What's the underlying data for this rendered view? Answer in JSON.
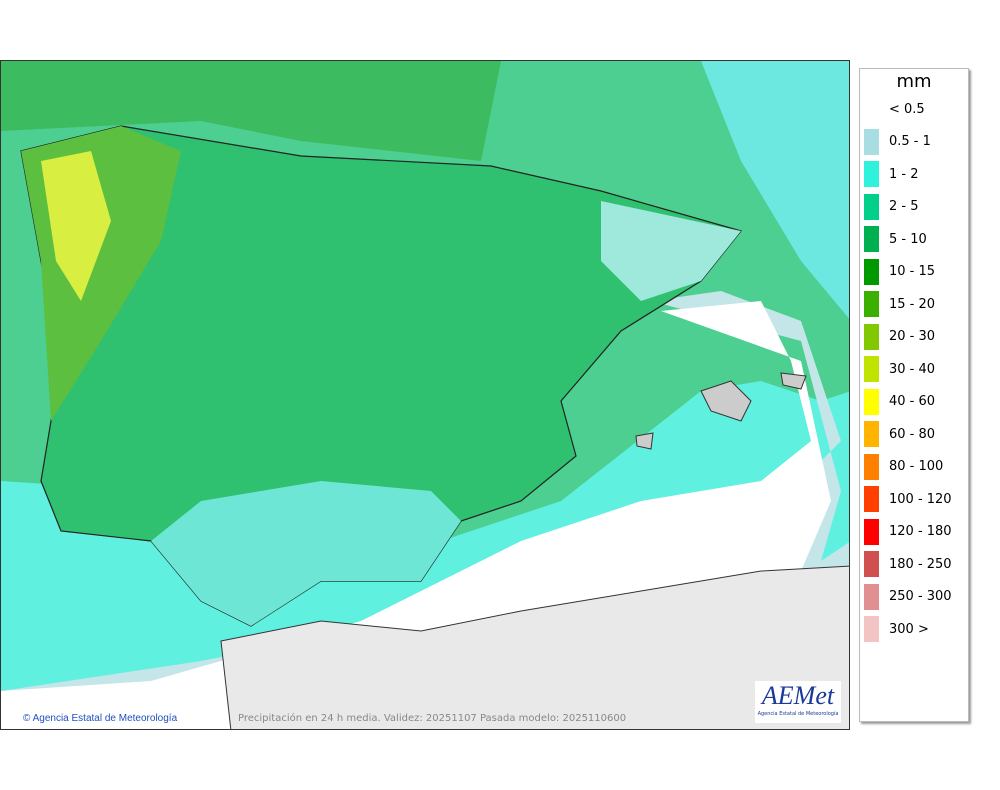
{
  "legend": {
    "title": "mm",
    "items": [
      {
        "label": "< 0.5",
        "color": null
      },
      {
        "label": "0.5 - 1",
        "color": "#a8dde2"
      },
      {
        "label": "1 - 2",
        "color": "#2ef2dc"
      },
      {
        "label": "2 - 5",
        "color": "#00d08a"
      },
      {
        "label": "5 - 10",
        "color": "#00b050"
      },
      {
        "label": "10 - 15",
        "color": "#009a00"
      },
      {
        "label": "15 - 20",
        "color": "#3cb000"
      },
      {
        "label": "20 - 30",
        "color": "#80c800"
      },
      {
        "label": "30 - 40",
        "color": "#c0e400"
      },
      {
        "label": "40 - 60",
        "color": "#ffff00"
      },
      {
        "label": "60 - 80",
        "color": "#ffb400"
      },
      {
        "label": "80 - 100",
        "color": "#ff8000"
      },
      {
        "label": "100 - 120",
        "color": "#ff4000"
      },
      {
        "label": "120 - 180",
        "color": "#ff0000"
      },
      {
        "label": "180 - 250",
        "color": "#d05050"
      },
      {
        "label": "250 - 300",
        "color": "#e09090"
      },
      {
        "label": "300 >",
        "color": "#f2c4c4"
      }
    ]
  },
  "credit": "© Agencia Estatal de Meteorología",
  "caption": "Precipitación en 24 h media. Validez: 20251107 Pasada modelo: 2025110600",
  "logo": {
    "text": "AEMet",
    "subtitle": "Agencia Estatal de Meteorología"
  }
}
